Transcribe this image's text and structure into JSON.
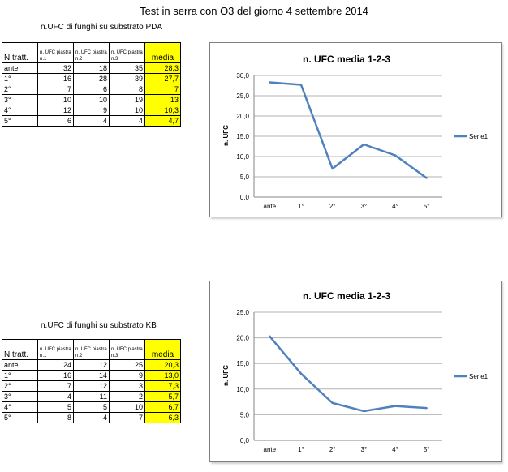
{
  "title": "Test in serra con O3 del giorno 4 settembre 2014",
  "colors": {
    "series": "#4f81bd",
    "highlight": "#ffff00",
    "grid": "#b3b3b3"
  },
  "tables": [
    {
      "subtitle": "n.UFC di funghi su substrato PDA",
      "headers": [
        "N tratt.",
        "n. UFC piastra n.1",
        "n. UFC piastra n.2",
        "n. UFC piastra n.3",
        "media"
      ],
      "rows": [
        [
          "ante",
          "32",
          "18",
          "35",
          "28,3"
        ],
        [
          "1°",
          "16",
          "28",
          "39",
          "27,7"
        ],
        [
          "2°",
          "7",
          "6",
          "8",
          "7"
        ],
        [
          "3°",
          "10",
          "10",
          "19",
          "13"
        ],
        [
          "4°",
          "12",
          "9",
          "10",
          "10,3"
        ],
        [
          "5°",
          "6",
          "4",
          "4",
          "4,7"
        ]
      ]
    },
    {
      "subtitle": "n.UFC di funghi su substrato KB",
      "headers": [
        "N tratt.",
        "n. UFC piastra n.1",
        "n. UFC piastra n.2",
        "n. UFC piastra n.3",
        "media"
      ],
      "rows": [
        [
          "ante",
          "24",
          "12",
          "25",
          "20,3"
        ],
        [
          "1°",
          "16",
          "14",
          "9",
          "13,0"
        ],
        [
          "2°",
          "7",
          "12",
          "3",
          "7,3"
        ],
        [
          "3°",
          "4",
          "11",
          "2",
          "5,7"
        ],
        [
          "4°",
          "5",
          "5",
          "10",
          "6,7"
        ],
        [
          "5°",
          "8",
          "4",
          "7",
          "6,3"
        ]
      ]
    }
  ],
  "chart_data": [
    {
      "type": "line",
      "title": "n. UFC media 1-2-3",
      "ylabel": "n. UFC",
      "xlabel": "",
      "categories": [
        "ante",
        "1°",
        "2°",
        "3°",
        "4°",
        "5°"
      ],
      "series": [
        {
          "name": "Serie1",
          "values": [
            28.3,
            27.7,
            7,
            13,
            10.3,
            4.7
          ]
        }
      ],
      "ylim": [
        0,
        30
      ],
      "yticks": [
        "0,0",
        "5,0",
        "10,0",
        "15,0",
        "20,0",
        "25,0",
        "30,0"
      ],
      "grid": true,
      "legend": "right"
    },
    {
      "type": "line",
      "title": "n. UFC media 1-2-3",
      "ylabel": "n. UFC",
      "xlabel": "",
      "categories": [
        "ante",
        "1°",
        "2°",
        "3°",
        "4°",
        "5°"
      ],
      "series": [
        {
          "name": "Serie1",
          "values": [
            20.3,
            13.0,
            7.3,
            5.7,
            6.7,
            6.3
          ]
        }
      ],
      "ylim": [
        0,
        25
      ],
      "yticks": [
        "0,0",
        "5,0",
        "10,0",
        "15,0",
        "20,0",
        "25,0"
      ],
      "grid": true,
      "legend": "right"
    }
  ]
}
